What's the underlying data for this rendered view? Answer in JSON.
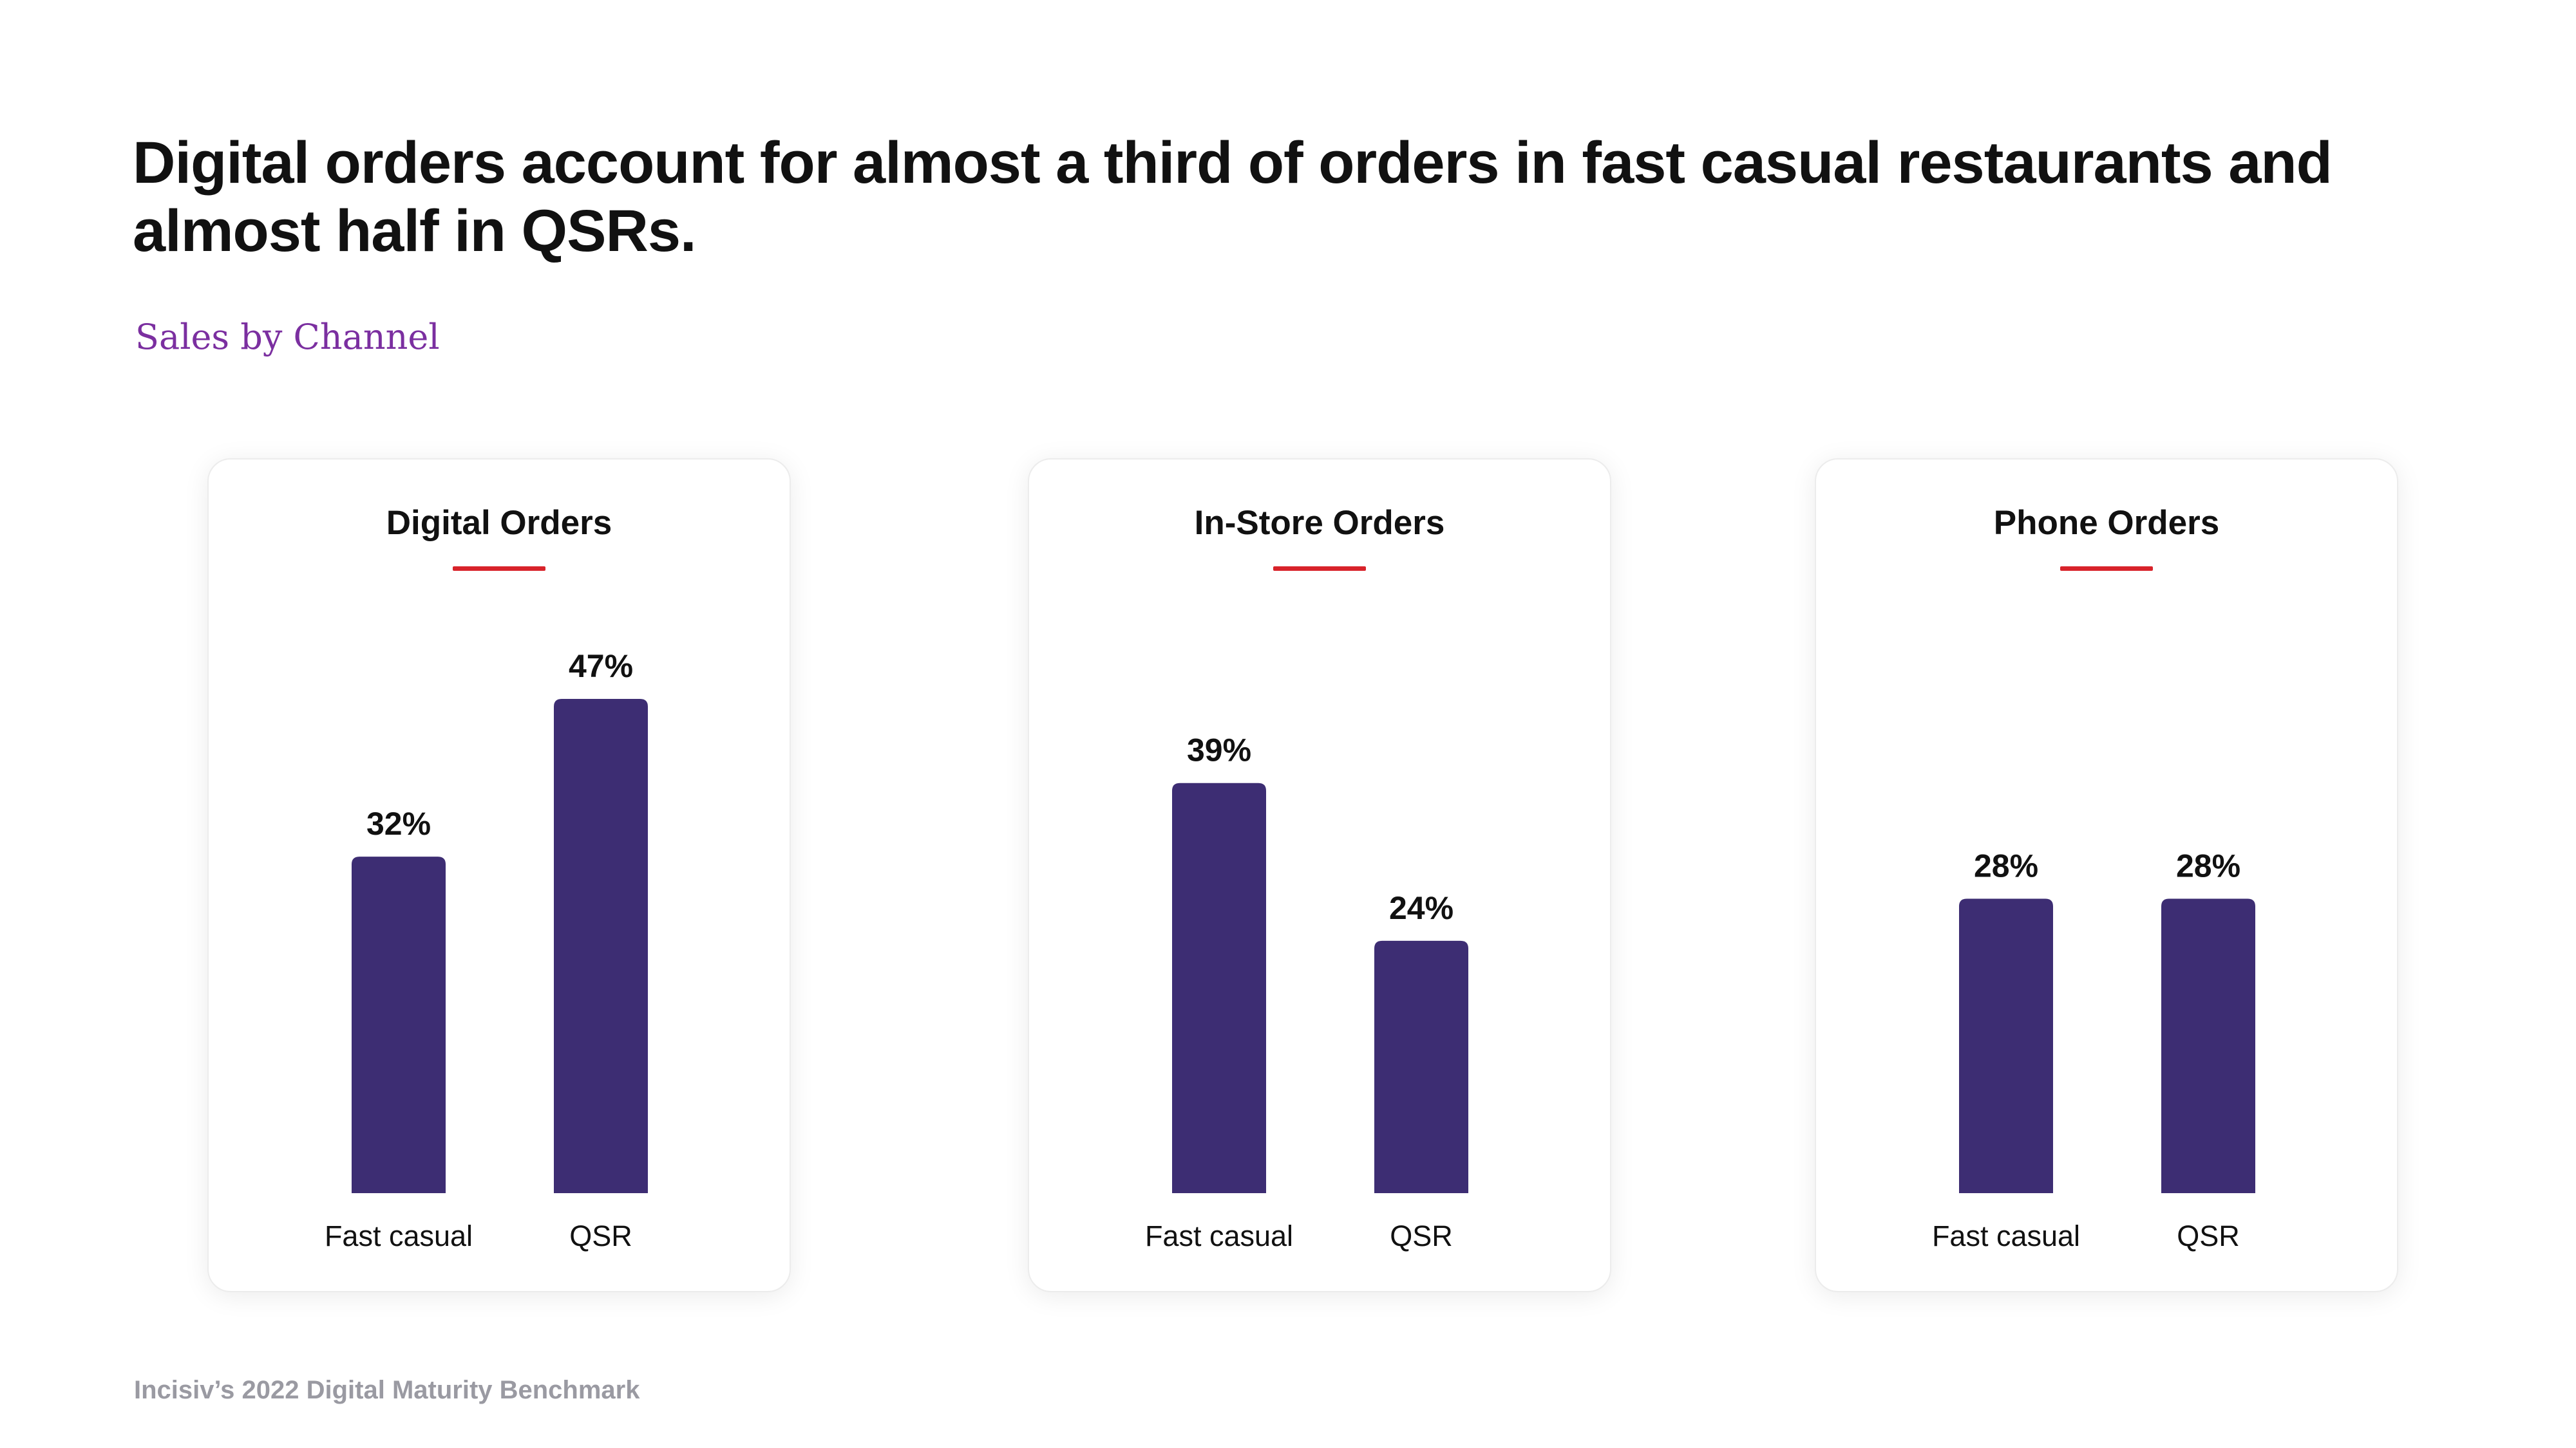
{
  "headline": "Digital orders account for almost a third of orders in fast casual restaurants and almost half in QSRs.",
  "subtitle": "Sales by Channel",
  "source": "Incisiv’s 2022 Digital Maturity Benchmark",
  "colors": {
    "bar": "#3d2d73",
    "accent_underline": "#d8232a",
    "subtitle": "#7b2fa0"
  },
  "chart_data": [
    {
      "type": "bar",
      "title": "Digital Orders",
      "categories": [
        "Fast casual",
        "QSR"
      ],
      "values": [
        32,
        47
      ],
      "value_labels": [
        "32%",
        "47%"
      ],
      "unit": "%",
      "ylim": [
        0,
        47
      ],
      "grid": false
    },
    {
      "type": "bar",
      "title": "In-Store Orders",
      "categories": [
        "Fast casual",
        "QSR"
      ],
      "values": [
        39,
        24
      ],
      "value_labels": [
        "39%",
        "24%"
      ],
      "unit": "%",
      "ylim": [
        0,
        39
      ],
      "grid": false
    },
    {
      "type": "bar",
      "title": "Phone Orders",
      "categories": [
        "Fast casual",
        "QSR"
      ],
      "values": [
        28,
        28
      ],
      "value_labels": [
        "28%",
        "28%"
      ],
      "unit": "%",
      "ylim": [
        0,
        28
      ],
      "grid": false
    }
  ]
}
